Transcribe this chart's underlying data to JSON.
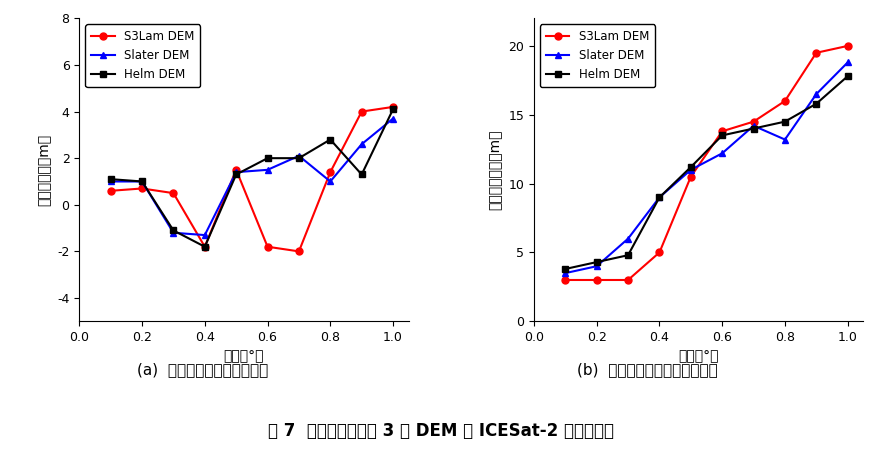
{
  "x": [
    0.1,
    0.2,
    0.3,
    0.4,
    0.5,
    0.6,
    0.7,
    0.8,
    0.9,
    1.0
  ],
  "left": {
    "S3Lam": [
      0.6,
      0.7,
      0.5,
      -1.8,
      1.5,
      -1.8,
      -2.0,
      1.4,
      4.0,
      4.2
    ],
    "Slater": [
      1.0,
      1.0,
      -1.2,
      -1.3,
      1.4,
      1.5,
      2.1,
      1.0,
      2.6,
      3.7
    ],
    "Helm": [
      1.1,
      1.0,
      -1.1,
      -1.8,
      1.3,
      2.0,
      2.0,
      2.8,
      1.3,
      4.1
    ],
    "ylabel": "高程差均値（m）",
    "ylim": [
      -5,
      8
    ],
    "yticks": [
      -4,
      -2,
      0,
      2,
      4,
      6,
      8
    ],
    "caption": "(a)  高程差均値与坡度的关系"
  },
  "right": {
    "S3Lam": [
      3.0,
      3.0,
      3.0,
      5.0,
      10.5,
      13.8,
      14.5,
      16.0,
      19.5,
      20.0
    ],
    "Slater": [
      3.5,
      4.0,
      6.0,
      9.0,
      11.0,
      12.2,
      14.2,
      13.2,
      16.5,
      18.8
    ],
    "Helm": [
      3.8,
      4.3,
      4.8,
      9.0,
      11.2,
      13.5,
      14.0,
      14.5,
      15.8,
      17.8
    ],
    "ylabel": "高程差标准差（m）",
    "ylim": [
      0,
      22
    ],
    "yticks": [
      0,
      5,
      10,
      15,
      20
    ],
    "caption": "(b)  高程差标准差与坡度的关系"
  },
  "xlabel": "坡度（°）",
  "xticks": [
    0.0,
    0.2,
    0.4,
    0.6,
    0.8,
    1.0
  ],
  "xlim": [
    0.0,
    1.05
  ],
  "legend_labels": [
    "S3Lam DEM",
    "Slater DEM",
    "Helm DEM"
  ],
  "colors": [
    "red",
    "blue",
    "black"
  ],
  "markers": [
    "o",
    "^",
    "s"
  ],
  "figure_caption": "图 7  不同坡度范围内 3 种 DEM 与 ICESat-2 高程差统计",
  "bg_color": "#ffffff"
}
